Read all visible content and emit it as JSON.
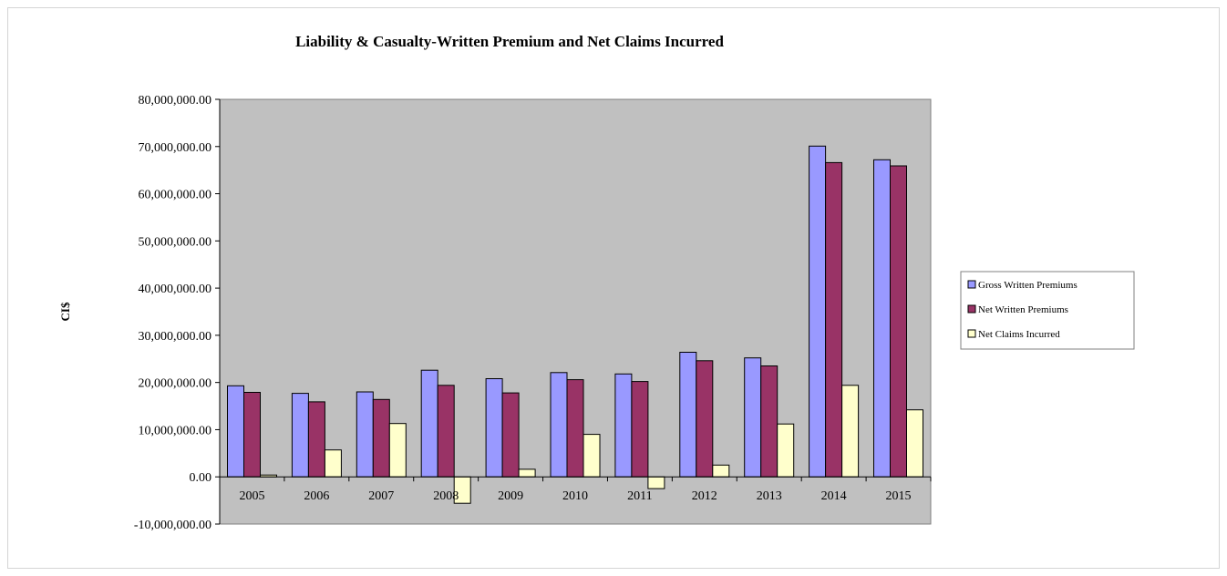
{
  "chart_data": {
    "type": "bar",
    "title": "Liability & Casualty-Written Premium and Net Claims Incurred",
    "ylabel": "CI$",
    "xlabel": "",
    "ylim": [
      -10000000,
      80000000
    ],
    "yticks": [
      {
        "value": -10000000,
        "label": "-10,000,000.00"
      },
      {
        "value": 0,
        "label": "0.00"
      },
      {
        "value": 10000000,
        "label": "10,000,000.00"
      },
      {
        "value": 20000000,
        "label": "20,000,000.00"
      },
      {
        "value": 30000000,
        "label": "30,000,000.00"
      },
      {
        "value": 40000000,
        "label": "40,000,000.00"
      },
      {
        "value": 50000000,
        "label": "50,000,000.00"
      },
      {
        "value": 60000000,
        "label": "60,000,000.00"
      },
      {
        "value": 70000000,
        "label": "70,000,000.00"
      },
      {
        "value": 80000000,
        "label": "80,000,000.00"
      }
    ],
    "categories": [
      "2005",
      "2006",
      "2007",
      "2008",
      "2009",
      "2010",
      "2011",
      "2012",
      "2013",
      "2014",
      "2015"
    ],
    "series": [
      {
        "name": "Gross Written Premiums",
        "color": "#9999ff",
        "values": [
          19300000,
          17700000,
          18000000,
          22600000,
          20800000,
          22100000,
          21800000,
          26400000,
          25200000,
          70100000,
          67200000
        ]
      },
      {
        "name": "Net Written Premiums",
        "color": "#993366",
        "values": [
          17900000,
          15900000,
          16400000,
          19400000,
          17800000,
          20600000,
          20200000,
          24600000,
          23500000,
          66600000,
          65900000
        ]
      },
      {
        "name": "Net Claims Incurred",
        "color": "#ffffcc",
        "values": [
          400000,
          5700000,
          11300000,
          -5600000,
          1600000,
          9000000,
          -2500000,
          2500000,
          11200000,
          19400000,
          14200000
        ]
      }
    ],
    "grid": false,
    "plot_background": "#c0c0c0",
    "legend_position": "right"
  }
}
